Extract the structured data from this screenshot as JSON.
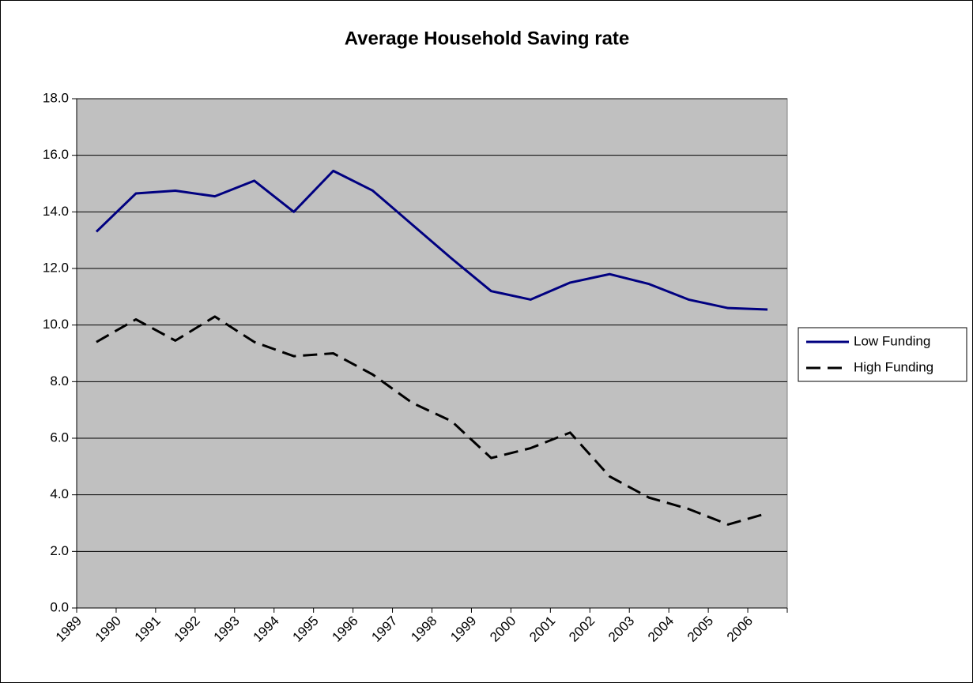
{
  "chart_data": {
    "type": "line",
    "title": "Average Household Saving rate",
    "categories": [
      "1989",
      "1990",
      "1991",
      "1992",
      "1993",
      "1994",
      "1995",
      "1996",
      "1997",
      "1998",
      "1999",
      "2000",
      "2001",
      "2002",
      "2003",
      "2004",
      "2005",
      "2006"
    ],
    "series": [
      {
        "name": "Low Funding",
        "color": "#000080",
        "dash": "solid",
        "values": [
          13.3,
          14.65,
          14.75,
          14.55,
          15.1,
          14.0,
          15.45,
          14.75,
          13.55,
          12.35,
          11.2,
          10.9,
          11.5,
          11.8,
          11.45,
          10.9,
          10.6,
          10.55
        ]
      },
      {
        "name": "High Funding",
        "color": "#000000",
        "dash": "dashed",
        "values": [
          9.4,
          10.2,
          9.45,
          10.3,
          9.4,
          8.9,
          9.0,
          8.25,
          7.25,
          6.6,
          5.3,
          5.65,
          6.2,
          4.65,
          3.9,
          3.5,
          2.95,
          3.35
        ]
      }
    ],
    "ylim": [
      0,
      18
    ],
    "yticks": [
      {
        "value": 0,
        "label": "0.0"
      },
      {
        "value": 2,
        "label": "2.0"
      },
      {
        "value": 4,
        "label": "4.0"
      },
      {
        "value": 6,
        "label": "6.0"
      },
      {
        "value": 8,
        "label": "8.0"
      },
      {
        "value": 10,
        "label": "10.0"
      },
      {
        "value": 12,
        "label": "12.0"
      },
      {
        "value": 14,
        "label": "14.0"
      },
      {
        "value": 16,
        "label": "16.0"
      },
      {
        "value": 18,
        "label": "18.0"
      }
    ],
    "grid": true,
    "legend": "right",
    "plot_background": "#c0c0c0"
  }
}
